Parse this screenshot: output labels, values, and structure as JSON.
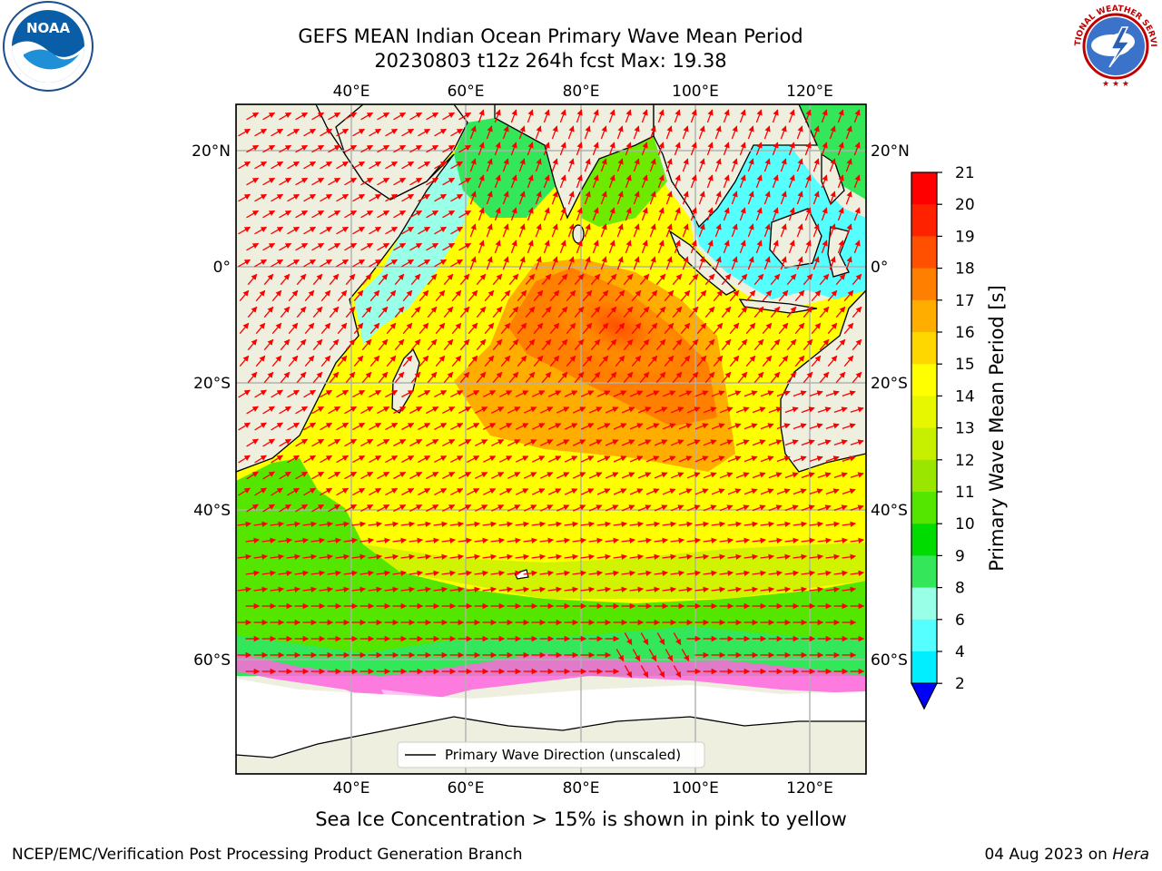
{
  "header": {
    "title_line1": "GEFS MEAN Indian Ocean Primary Wave Mean Period",
    "title_line2": "20230803 t12z 264h fcst   Max: 19.38"
  },
  "logos": {
    "left": {
      "name": "noaa-logo",
      "text": "NOAA"
    },
    "right": {
      "name": "nws-logo",
      "text": "NATIONAL WEATHER SERVICE"
    }
  },
  "map": {
    "lon_ticks": [
      "40°E",
      "60°E",
      "80°E",
      "100°E",
      "120°E"
    ],
    "lat_ticks_left": [
      "20°N",
      "0°",
      "20°S",
      "40°S",
      "60°S"
    ],
    "lat_ticks_right": [
      "20°N",
      "0°",
      "20°S",
      "40°S",
      "60°S"
    ],
    "legend_label": "Primary Wave Direction (unscaled)",
    "land_color": "#efefe0",
    "arrow_color": "#ff0000"
  },
  "colorbar": {
    "label": "Primary Wave Mean Period [s]",
    "ticks": [
      "21",
      "20",
      "19",
      "18",
      "17",
      "16",
      "15",
      "14",
      "13",
      "12",
      "11",
      "10",
      "9",
      "8",
      "6",
      "4",
      "2"
    ],
    "colors": [
      "#ff0000",
      "#ff2200",
      "#ff4f00",
      "#ff7f00",
      "#ffae00",
      "#ffd700",
      "#ffff00",
      "#e6f700",
      "#c7f000",
      "#9ae600",
      "#55e600",
      "#00dc00",
      "#33e65a",
      "#99ffe6",
      "#55ffff",
      "#00eeff",
      "#0099ff",
      "#0000ff"
    ]
  },
  "footer": {
    "ice_note": "Sea Ice Concentration > 15% is shown in pink to yellow",
    "credit": "NCEP/EMC/Verification Post Processing Product Generation Branch",
    "date": "04 Aug 2023 on ",
    "host": "Hera"
  }
}
